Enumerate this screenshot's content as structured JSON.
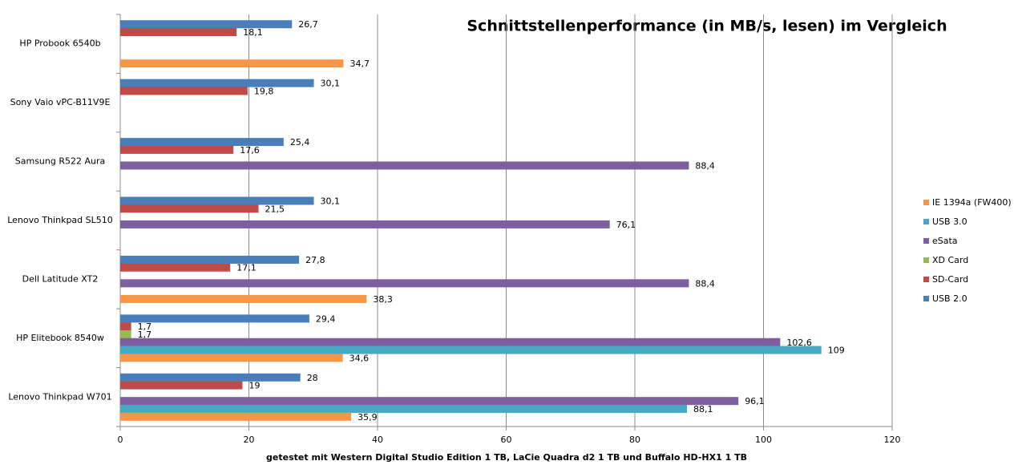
{
  "chart_data": {
    "type": "hbar",
    "title": "Schnittstellenperformance (in MB/s, lesen) im Vergleich",
    "x_label": "getestet mit Western Digital Studio Edition 1 TB, LaCie Quadra d2 1 TB und Buffalo HD-HX1 1 TB",
    "categories": [
      "HP Probook 6540b",
      "Sony Vaio vPC-B11V9E",
      "Samsung R522 Aura",
      "Lenovo Thinkpad SL510",
      "Dell Latitude XT2",
      "HP Elitebook 8540w",
      "Lenovo Thinkpad W701"
    ],
    "series": [
      {
        "name": "USB 2.0",
        "color": "#4a7ebb",
        "values": [
          26.7,
          30.1,
          25.4,
          30.1,
          27.8,
          29.4,
          28
        ],
        "value_labels": [
          "26,7",
          "30,1",
          "25,4",
          "30,1",
          "27,8",
          "29,4",
          "28"
        ]
      },
      {
        "name": "SD-Card",
        "color": "#be4b48",
        "values": [
          18.1,
          19.8,
          17.6,
          21.5,
          17.1,
          1.7,
          19
        ],
        "value_labels": [
          "18,1",
          "19,8",
          "17,6",
          "21,5",
          "17,1",
          "1,7",
          "19"
        ]
      },
      {
        "name": "XD Card",
        "color": "#98b954",
        "values": [
          null,
          null,
          null,
          null,
          null,
          1.7,
          null
        ],
        "value_labels": [
          null,
          null,
          null,
          null,
          null,
          "1,7",
          null
        ]
      },
      {
        "name": "eSata",
        "color": "#7d5fa0",
        "values": [
          null,
          null,
          88.4,
          76.1,
          88.4,
          102.6,
          96.1
        ],
        "value_labels": [
          null,
          null,
          "88,4",
          "76,1",
          "88,4",
          "102,6",
          "96,1"
        ]
      },
      {
        "name": "USB 3.0",
        "color": "#46aac5",
        "values": [
          null,
          null,
          null,
          null,
          null,
          109,
          88.1
        ],
        "value_labels": [
          null,
          null,
          null,
          null,
          null,
          "109",
          "88,1"
        ]
      },
      {
        "name": "IE 1394a (FW400)",
        "color": "#f79646",
        "values": [
          34.7,
          null,
          null,
          null,
          38.3,
          34.6,
          35.9
        ],
        "value_labels": [
          "34,7",
          null,
          null,
          null,
          "38,3",
          "34,6",
          "35,9"
        ]
      }
    ],
    "xlim": [
      0,
      120
    ],
    "xticks": [
      0,
      20,
      40,
      60,
      80,
      100,
      120
    ],
    "grid": true,
    "legend": "right"
  }
}
